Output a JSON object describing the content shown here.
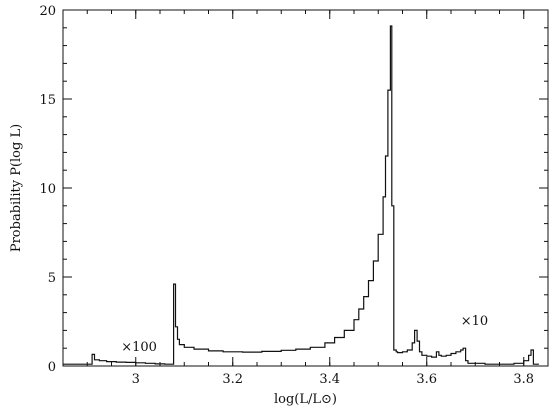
{
  "chart_data": {
    "type": "line",
    "title": "",
    "xlabel": "log(L/L⊙)",
    "ylabel": "Probability   P(log L)",
    "xlim": [
      2.85,
      3.85
    ],
    "ylim": [
      0,
      20
    ],
    "grid": false,
    "x_ticks": [
      {
        "value": 3.0,
        "label": "3"
      },
      {
        "value": 3.2,
        "label": "3.2"
      },
      {
        "value": 3.4,
        "label": "3.4"
      },
      {
        "value": 3.6,
        "label": "3.6"
      },
      {
        "value": 3.8,
        "label": "3.8"
      }
    ],
    "y_ticks": [
      {
        "value": 0,
        "label": "0"
      },
      {
        "value": 5,
        "label": "5"
      },
      {
        "value": 10,
        "label": "10"
      },
      {
        "value": 15,
        "label": "15"
      },
      {
        "value": 20,
        "label": "20"
      }
    ],
    "annotations": [
      {
        "text": "×100",
        "x": 2.97,
        "y": 0.85
      },
      {
        "text": "×10",
        "x": 3.67,
        "y": 2.3
      }
    ],
    "series": [
      {
        "style": "step",
        "x": [
          2.85,
          2.91,
          2.915,
          2.925,
          2.94,
          2.96,
          2.98,
          3.0,
          3.02,
          3.04,
          3.06,
          3.075,
          3.078,
          3.082,
          3.086,
          3.09,
          3.1,
          3.12,
          3.15,
          3.18,
          3.22,
          3.26,
          3.3,
          3.33,
          3.36,
          3.39,
          3.41,
          3.43,
          3.45,
          3.46,
          3.47,
          3.48,
          3.49,
          3.5,
          3.51,
          3.515,
          3.52,
          3.525,
          3.528,
          3.532,
          3.537,
          3.54,
          3.55,
          3.56,
          3.57,
          3.575,
          3.58,
          3.585,
          3.59,
          3.6,
          3.61,
          3.62,
          3.625,
          3.63,
          3.64,
          3.65,
          3.66,
          3.67,
          3.675,
          3.68,
          3.685,
          3.7,
          3.72,
          3.75,
          3.78,
          3.8,
          3.81,
          3.815,
          3.82,
          3.825
        ],
        "y": [
          0.1,
          0.65,
          0.35,
          0.3,
          0.25,
          0.22,
          0.2,
          0.18,
          0.15,
          0.12,
          0.1,
          0.1,
          4.6,
          2.2,
          1.5,
          1.2,
          1.05,
          0.95,
          0.85,
          0.8,
          0.78,
          0.82,
          0.88,
          0.95,
          1.05,
          1.3,
          1.6,
          2.0,
          2.6,
          3.2,
          3.9,
          4.8,
          5.9,
          7.4,
          9.5,
          11.8,
          15.5,
          19.1,
          9.0,
          0.9,
          0.8,
          0.75,
          0.8,
          0.9,
          1.3,
          2.0,
          1.4,
          0.8,
          0.6,
          0.55,
          0.5,
          0.8,
          0.6,
          0.55,
          0.6,
          0.7,
          0.8,
          0.9,
          1.0,
          0.3,
          0.15,
          0.15,
          0.1,
          0.1,
          0.15,
          0.3,
          0.6,
          0.9,
          0.1,
          0.1
        ]
      }
    ]
  }
}
